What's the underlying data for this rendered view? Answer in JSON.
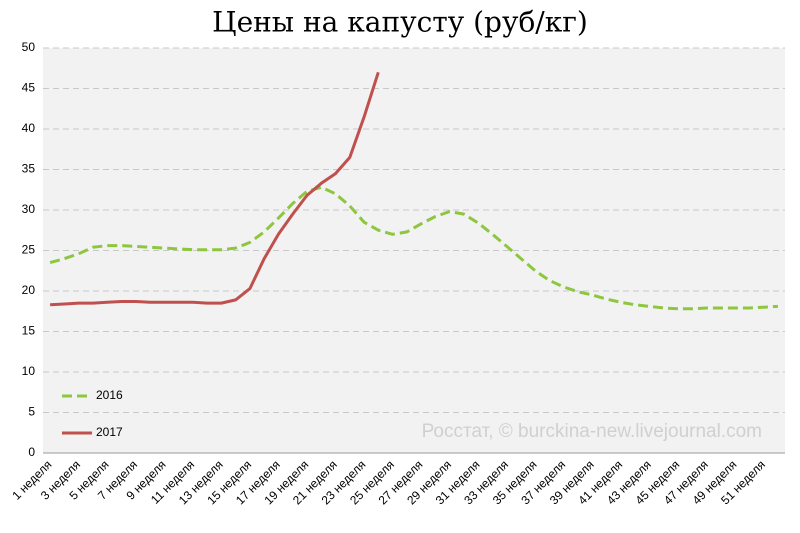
{
  "chart_data": {
    "type": "line",
    "title": "Цены на капусту (руб/кг)",
    "annotation": "Росстат, © burckina-new.livejournal.com",
    "categories": [
      "1 неделя",
      null,
      "3 неделя",
      null,
      "5 неделя",
      null,
      "7 неделя",
      null,
      "9 неделя",
      null,
      "11 неделя",
      null,
      "13 неделя",
      null,
      "15 неделя",
      null,
      "17 неделя",
      null,
      "19 неделя",
      null,
      "21 неделя",
      null,
      "23 неделя",
      null,
      "25 неделя",
      null,
      "27 неделя",
      null,
      "29 неделя",
      null,
      "31 неделя",
      null,
      "33 неделя",
      null,
      "35 неделя",
      null,
      "37 неделя",
      null,
      "39 неделя",
      null,
      "41 неделя",
      null,
      "43 неделя",
      null,
      "45 неделя",
      null,
      "47 неделя",
      null,
      "49 неделя",
      null,
      "51 неделя",
      null
    ],
    "series": [
      {
        "name": "2016",
        "color": "#8dc63f",
        "line_style": "dashed",
        "values": [
          23.5,
          24.0,
          24.6,
          25.4,
          25.6,
          25.6,
          25.5,
          25.4,
          25.3,
          25.2,
          25.1,
          25.1,
          25.1,
          25.3,
          26.0,
          27.3,
          29.0,
          30.8,
          32.3,
          32.8,
          32.0,
          30.5,
          28.5,
          27.5,
          27.0,
          27.3,
          28.3,
          29.2,
          29.8,
          29.5,
          28.4,
          27.0,
          25.5,
          24.0,
          22.5,
          21.3,
          20.5,
          19.9,
          19.5,
          19.0,
          18.6,
          18.3,
          18.1,
          17.9,
          17.8,
          17.8,
          17.9,
          17.9,
          17.9,
          17.9,
          18.0,
          18.1
        ]
      },
      {
        "name": "2017",
        "color": "#c0504d",
        "line_style": "solid",
        "values": [
          18.3,
          18.4,
          18.5,
          18.5,
          18.6,
          18.7,
          18.7,
          18.6,
          18.6,
          18.6,
          18.6,
          18.5,
          18.5,
          18.9,
          20.3,
          24.0,
          27.0,
          29.5,
          31.8,
          33.3,
          34.5,
          36.5,
          41.5,
          47.0,
          null,
          null,
          null,
          null,
          null,
          null,
          null,
          null,
          null,
          null,
          null,
          null,
          null,
          null,
          null,
          null,
          null,
          null,
          null,
          null,
          null,
          null,
          null,
          null,
          null,
          null,
          null,
          null
        ]
      }
    ],
    "ylim": [
      0,
      50
    ],
    "yticks": [
      0,
      5,
      10,
      15,
      20,
      25,
      30,
      35,
      40,
      45,
      50
    ],
    "grid": true,
    "legend": "lower left"
  }
}
